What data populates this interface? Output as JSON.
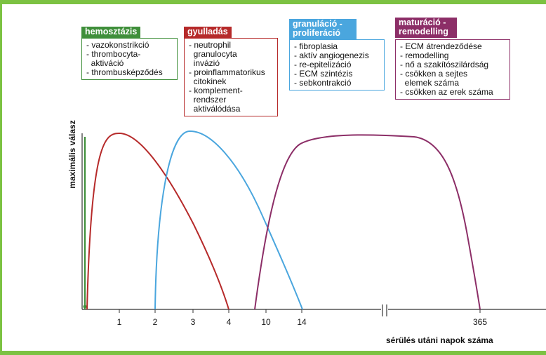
{
  "phases": [
    {
      "id": "hemo",
      "title": [
        "hemosztázis"
      ],
      "items": [
        "- vazokonstrikció",
        "- thrombocyta-",
        "  aktiváció",
        "- thrombusképződés"
      ],
      "color": "#3f8f3a"
    },
    {
      "id": "gyul",
      "title": [
        "gyulladás"
      ],
      "items": [
        "- neutrophil",
        "  granulocyta",
        "  invázió",
        "- proinflammatorikus",
        "  citokinek",
        "- komplement-",
        "  rendszer",
        "  aktiválódása"
      ],
      "color": "#b62a2a"
    },
    {
      "id": "gran",
      "title": [
        "granuláció -",
        "proliferáció"
      ],
      "items": [
        "- fibroplasia",
        "- aktív angiogenezis",
        "- re-epitelizáció",
        "- ECM szintézis",
        "- sebkontrakció"
      ],
      "color": "#4aa6de"
    },
    {
      "id": "matu",
      "title": [
        "maturáció -",
        "remodelling"
      ],
      "items": [
        "- ECM átrendeződése",
        "- remodelling",
        "- nő a szakítószilárdság",
        "- csökken a sejtes",
        "  elemek száma",
        "- csökken az erek száma"
      ],
      "color": "#8c2e67"
    }
  ],
  "axes": {
    "ylabel": "maximális válasz",
    "xlabel": "sérülés utáni napok száma",
    "ticks": [
      "1",
      "2",
      "3",
      "4",
      "10",
      "14",
      "365"
    ]
  }
}
